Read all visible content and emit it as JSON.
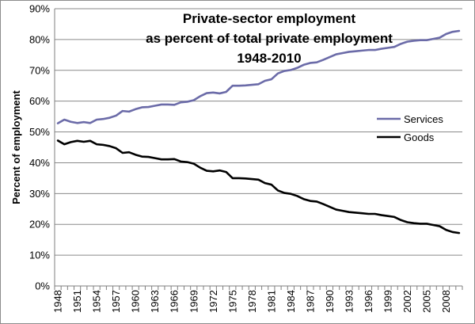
{
  "chart_data": {
    "type": "line",
    "title": [
      "Private-sector employment",
      "as percent of total private employment",
      "1948-2010"
    ],
    "xlabel": "",
    "ylabel": "Percent of employment",
    "ylim": [
      0,
      90
    ],
    "yticks": [
      "0%",
      "10%",
      "20%",
      "30%",
      "40%",
      "50%",
      "60%",
      "70%",
      "80%",
      "90%"
    ],
    "xticks": [
      "1948",
      "1951",
      "1954",
      "1957",
      "1960",
      "1963",
      "1966",
      "1969",
      "1972",
      "1975",
      "1978",
      "1981",
      "1984",
      "1987",
      "1990",
      "1993",
      "1996",
      "1999",
      "2002",
      "2005",
      "2008"
    ],
    "legend_position": "right",
    "x": [
      1948,
      1949,
      1950,
      1951,
      1952,
      1953,
      1954,
      1955,
      1956,
      1957,
      1958,
      1959,
      1960,
      1961,
      1962,
      1963,
      1964,
      1965,
      1966,
      1967,
      1968,
      1969,
      1970,
      1971,
      1972,
      1973,
      1974,
      1975,
      1976,
      1977,
      1978,
      1979,
      1980,
      1981,
      1982,
      1983,
      1984,
      1985,
      1986,
      1987,
      1988,
      1989,
      1990,
      1991,
      1992,
      1993,
      1994,
      1995,
      1996,
      1997,
      1998,
      1999,
      2000,
      2001,
      2002,
      2003,
      2004,
      2005,
      2006,
      2007,
      2008,
      2009,
      2010
    ],
    "series": [
      {
        "name": "Services",
        "color": "#6b6ba8",
        "values": [
          52.8,
          54.0,
          53.3,
          52.9,
          53.2,
          52.9,
          54.0,
          54.2,
          54.6,
          55.3,
          56.8,
          56.6,
          57.4,
          58.0,
          58.1,
          58.5,
          58.9,
          58.9,
          58.8,
          59.6,
          59.8,
          60.3,
          61.6,
          62.6,
          62.8,
          62.5,
          63.0,
          65.0,
          65.0,
          65.1,
          65.3,
          65.5,
          66.6,
          67.1,
          69.0,
          69.8,
          70.1,
          70.8,
          71.8,
          72.4,
          72.6,
          73.4,
          74.3,
          75.2,
          75.6,
          76.0,
          76.2,
          76.4,
          76.6,
          76.6,
          77.0,
          77.3,
          77.6,
          78.6,
          79.3,
          79.6,
          79.8,
          79.8,
          80.2,
          80.6,
          81.8,
          82.5,
          82.8
        ]
      },
      {
        "name": "Goods",
        "color": "#000000",
        "values": [
          47.2,
          46.0,
          46.7,
          47.1,
          46.8,
          47.1,
          46.0,
          45.8,
          45.4,
          44.7,
          43.2,
          43.4,
          42.6,
          42.0,
          41.9,
          41.5,
          41.1,
          41.1,
          41.2,
          40.4,
          40.2,
          39.7,
          38.4,
          37.4,
          37.2,
          37.5,
          37.0,
          35.0,
          35.0,
          34.9,
          34.7,
          34.5,
          33.4,
          32.9,
          31.0,
          30.2,
          29.9,
          29.2,
          28.2,
          27.6,
          27.4,
          26.6,
          25.7,
          24.8,
          24.4,
          24.0,
          23.8,
          23.6,
          23.4,
          23.4,
          23.0,
          22.7,
          22.4,
          21.4,
          20.7,
          20.4,
          20.2,
          20.2,
          19.8,
          19.4,
          18.2,
          17.5,
          17.2
        ]
      }
    ]
  }
}
